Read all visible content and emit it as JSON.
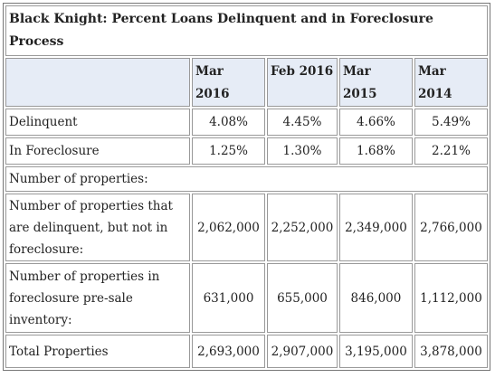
{
  "table": {
    "title": "Black Knight: Percent Loans Delinquent and in Foreclosure Process",
    "columns": [
      "Mar 2016",
      "Feb 2016",
      "Mar 2015",
      "Mar 2014"
    ],
    "rows": [
      {
        "label": "Delinquent",
        "values": [
          "4.08%",
          "4.45%",
          "4.66%",
          "5.49%"
        ]
      },
      {
        "label": "In Foreclosure",
        "values": [
          "1.25%",
          "1.30%",
          "1.68%",
          "2.21%"
        ]
      },
      {
        "label": "Number of properties:"
      },
      {
        "label": "Number of properties that are delinquent, but not in foreclosure:",
        "values": [
          "2,062,000",
          "2,252,000",
          "2,349,000",
          "2,766,000"
        ]
      },
      {
        "label": "Number of properties in foreclosure pre-sale inventory:",
        "values": [
          "631,000",
          "655,000",
          "846,000",
          "1,112,000"
        ]
      },
      {
        "label": "Total Properties",
        "values": [
          "2,693,000",
          "2,907,000",
          "3,195,000",
          "3,878,000"
        ]
      }
    ]
  }
}
